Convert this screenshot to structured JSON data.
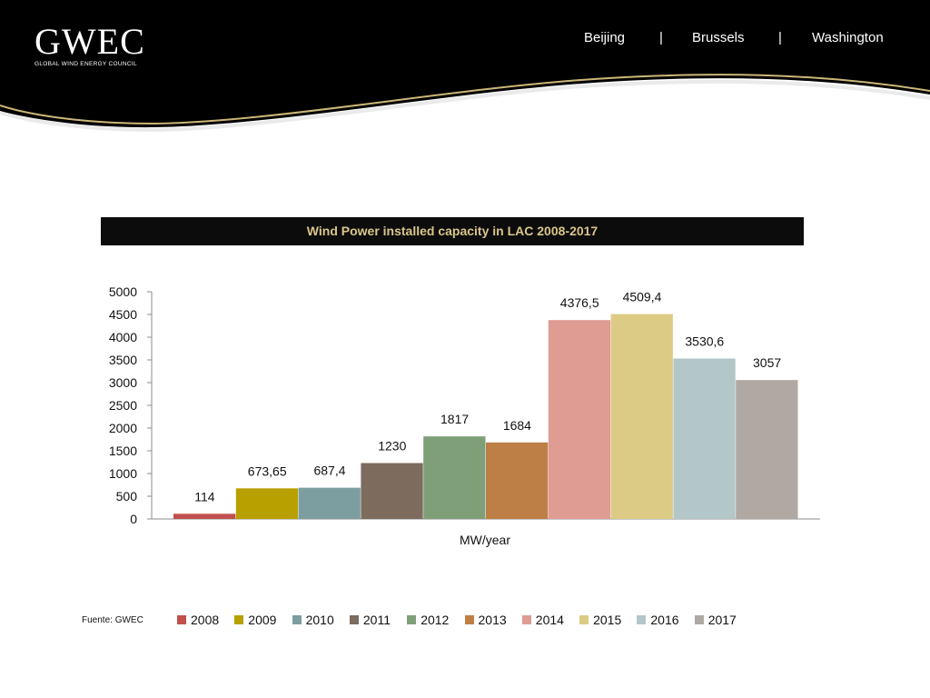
{
  "header": {
    "logo_text": "GWEC",
    "logo_subtitle": "GLOBAL WIND ENERGY COUNCIL",
    "cities": [
      "Beijing",
      "|",
      "Brussels",
      "|",
      "Washington"
    ],
    "colors": {
      "background": "#000000",
      "accent": "#d9c68a"
    }
  },
  "source_note": "Fuente: GWEC",
  "chart_data": {
    "type": "bar",
    "title": "Wind Power installed capacity in LAC 2008-2017",
    "xlabel": "MW/year",
    "ylabel": "",
    "ylim": [
      0,
      5000
    ],
    "yticks": [
      "0",
      "500",
      "1000",
      "1500",
      "2000",
      "2500",
      "3000",
      "3500",
      "4000",
      "4500",
      "5000"
    ],
    "grid": false,
    "legend_position": "bottom",
    "series": [
      {
        "name": "2008",
        "value": 114,
        "label": "114",
        "color": "#c0504d"
      },
      {
        "name": "2009",
        "value": 673.65,
        "label": "673,65",
        "color": "#b8a000"
      },
      {
        "name": "2010",
        "value": 687.4,
        "label": "687,4",
        "color": "#7c9ea0"
      },
      {
        "name": "2011",
        "value": 1230,
        "label": "1230",
        "color": "#7d6b5e"
      },
      {
        "name": "2012",
        "value": 1817,
        "label": "1817",
        "color": "#7f9f78"
      },
      {
        "name": "2013",
        "value": 1684,
        "label": "1684",
        "color": "#bd7f45"
      },
      {
        "name": "2014",
        "value": 4376.5,
        "label": "4376,5",
        "color": "#df9c93"
      },
      {
        "name": "2015",
        "value": 4509.4,
        "label": "4509,4",
        "color": "#dccb85"
      },
      {
        "name": "2016",
        "value": 3530.6,
        "label": "3530,6",
        "color": "#b3c7c8"
      },
      {
        "name": "2017",
        "value": 3057,
        "label": "3057",
        "color": "#b0a8a2"
      }
    ]
  }
}
